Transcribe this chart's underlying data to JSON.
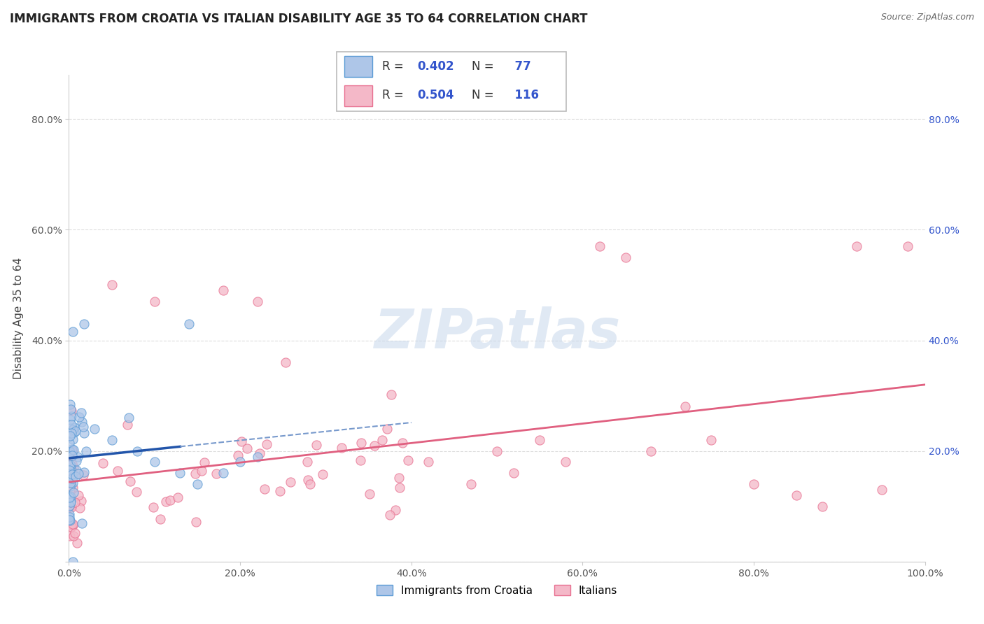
{
  "title": "IMMIGRANTS FROM CROATIA VS ITALIAN DISABILITY AGE 35 TO 64 CORRELATION CHART",
  "source": "Source: ZipAtlas.com",
  "ylabel": "Disability Age 35 to 64",
  "xlim": [
    0,
    1.0
  ],
  "ylim": [
    0,
    0.88
  ],
  "xtick_values": [
    0.0,
    0.2,
    0.4,
    0.6,
    0.8,
    1.0
  ],
  "xtick_labels": [
    "0.0%",
    "20.0%",
    "40.0%",
    "60.0%",
    "80.0%",
    "100.0%"
  ],
  "ytick_values": [
    0.0,
    0.2,
    0.4,
    0.6,
    0.8
  ],
  "ytick_labels": [
    "",
    "20.0%",
    "40.0%",
    "60.0%",
    "80.0%"
  ],
  "series1_color": "#aec6e8",
  "series1_edge": "#5b9bd5",
  "series2_color": "#f4b8c8",
  "series2_edge": "#e87090",
  "trendline1_color": "#2255aa",
  "trendline1_dash_color": "#7799cc",
  "trendline2_color": "#e06080",
  "R1": 0.402,
  "N1": 77,
  "R2": 0.504,
  "N2": 116,
  "legend1_label": "Immigrants from Croatia",
  "legend2_label": "Italians",
  "watermark": "ZIPatlas",
  "background_color": "#ffffff",
  "grid_color": "#dddddd",
  "title_fontsize": 12,
  "axis_fontsize": 11,
  "tick_fontsize": 10,
  "legend_box_color": "#aaaaaa",
  "legend_R_color": "#333333",
  "legend_N_color": "#3355cc"
}
